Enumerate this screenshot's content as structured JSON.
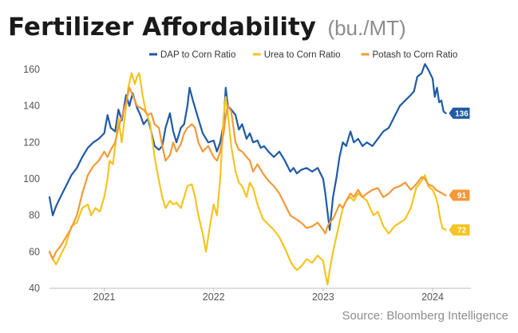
{
  "chart_data": {
    "type": "line",
    "title": "Fertilizer Affordability",
    "title_unit": "(bu./MT)",
    "source": "Source: Bloomberg Intelligence",
    "ylim": [
      40,
      160
    ],
    "yticks": [
      40,
      60,
      80,
      100,
      120,
      140,
      160
    ],
    "xlim": [
      2020.5,
      2024.35
    ],
    "xticks": [
      {
        "x": 2021,
        "label": "2021"
      },
      {
        "x": 2022,
        "label": "2022"
      },
      {
        "x": 2023,
        "label": "2023"
      },
      {
        "x": 2024,
        "label": "2024"
      }
    ],
    "legend_position": "top",
    "series": [
      {
        "name": "DAP to Corn Ratio",
        "color": "#1f5aa6",
        "end_label": "136",
        "end_value": 136,
        "points": [
          [
            2020.5,
            90
          ],
          [
            2020.53,
            80
          ],
          [
            2020.56,
            85
          ],
          [
            2020.6,
            90
          ],
          [
            2020.65,
            96
          ],
          [
            2020.7,
            102
          ],
          [
            2020.75,
            106
          ],
          [
            2020.8,
            112
          ],
          [
            2020.85,
            117
          ],
          [
            2020.9,
            120
          ],
          [
            2020.95,
            122
          ],
          [
            2021.0,
            125
          ],
          [
            2021.03,
            135
          ],
          [
            2021.06,
            128
          ],
          [
            2021.1,
            126
          ],
          [
            2021.13,
            138
          ],
          [
            2021.16,
            132
          ],
          [
            2021.2,
            146
          ],
          [
            2021.23,
            140
          ],
          [
            2021.26,
            147
          ],
          [
            2021.3,
            139
          ],
          [
            2021.33,
            135
          ],
          [
            2021.36,
            130
          ],
          [
            2021.4,
            133
          ],
          [
            2021.43,
            126
          ],
          [
            2021.46,
            118
          ],
          [
            2021.5,
            116
          ],
          [
            2021.53,
            118
          ],
          [
            2021.56,
            128
          ],
          [
            2021.6,
            136
          ],
          [
            2021.63,
            126
          ],
          [
            2021.66,
            120
          ],
          [
            2021.7,
            128
          ],
          [
            2021.73,
            130
          ],
          [
            2021.76,
            140
          ],
          [
            2021.78,
            150
          ],
          [
            2021.81,
            143
          ],
          [
            2021.85,
            135
          ],
          [
            2021.9,
            125
          ],
          [
            2021.95,
            120
          ],
          [
            2022.0,
            121
          ],
          [
            2022.03,
            115
          ],
          [
            2022.06,
            120
          ],
          [
            2022.09,
            130
          ],
          [
            2022.11,
            150
          ],
          [
            2022.13,
            140
          ],
          [
            2022.16,
            138
          ],
          [
            2022.2,
            135
          ],
          [
            2022.23,
            127
          ],
          [
            2022.26,
            130
          ],
          [
            2022.3,
            122
          ],
          [
            2022.33,
            125
          ],
          [
            2022.36,
            120
          ],
          [
            2022.4,
            121
          ],
          [
            2022.43,
            117
          ],
          [
            2022.46,
            118
          ],
          [
            2022.5,
            115
          ],
          [
            2022.55,
            112
          ],
          [
            2022.6,
            115
          ],
          [
            2022.65,
            110
          ],
          [
            2022.7,
            104
          ],
          [
            2022.73,
            106
          ],
          [
            2022.76,
            103
          ],
          [
            2022.8,
            105
          ],
          [
            2022.85,
            106
          ],
          [
            2022.9,
            104
          ],
          [
            2022.95,
            106
          ],
          [
            2023.0,
            100
          ],
          [
            2023.02,
            92
          ],
          [
            2023.04,
            82
          ],
          [
            2023.06,
            72
          ],
          [
            2023.09,
            90
          ],
          [
            2023.12,
            100
          ],
          [
            2023.15,
            112
          ],
          [
            2023.18,
            120
          ],
          [
            2023.21,
            118
          ],
          [
            2023.25,
            126
          ],
          [
            2023.28,
            120
          ],
          [
            2023.32,
            122
          ],
          [
            2023.36,
            118
          ],
          [
            2023.4,
            120
          ],
          [
            2023.45,
            118
          ],
          [
            2023.5,
            122
          ],
          [
            2023.55,
            126
          ],
          [
            2023.6,
            128
          ],
          [
            2023.65,
            134
          ],
          [
            2023.7,
            140
          ],
          [
            2023.75,
            143
          ],
          [
            2023.8,
            146
          ],
          [
            2023.83,
            148
          ],
          [
            2023.86,
            156
          ],
          [
            2023.9,
            158
          ],
          [
            2023.93,
            163
          ],
          [
            2023.96,
            160
          ],
          [
            2024.0,
            155
          ],
          [
            2024.02,
            145
          ],
          [
            2024.04,
            150
          ],
          [
            2024.06,
            142
          ],
          [
            2024.08,
            143
          ],
          [
            2024.1,
            137
          ],
          [
            2024.12,
            136
          ]
        ]
      },
      {
        "name": "Urea to Corn Ratio",
        "color": "#f5c421",
        "end_label": "72",
        "end_value": 72,
        "points": [
          [
            2020.5,
            60
          ],
          [
            2020.53,
            56
          ],
          [
            2020.56,
            53
          ],
          [
            2020.6,
            58
          ],
          [
            2020.65,
            64
          ],
          [
            2020.7,
            74
          ],
          [
            2020.75,
            76
          ],
          [
            2020.8,
            84
          ],
          [
            2020.85,
            86
          ],
          [
            2020.88,
            80
          ],
          [
            2020.92,
            84
          ],
          [
            2020.96,
            82
          ],
          [
            2021.0,
            90
          ],
          [
            2021.03,
            100
          ],
          [
            2021.05,
            110
          ],
          [
            2021.08,
            108
          ],
          [
            2021.1,
            118
          ],
          [
            2021.13,
            133
          ],
          [
            2021.16,
            120
          ],
          [
            2021.2,
            140
          ],
          [
            2021.22,
            150
          ],
          [
            2021.25,
            158
          ],
          [
            2021.28,
            152
          ],
          [
            2021.3,
            156
          ],
          [
            2021.32,
            158
          ],
          [
            2021.35,
            146
          ],
          [
            2021.38,
            137
          ],
          [
            2021.42,
            130
          ],
          [
            2021.46,
            112
          ],
          [
            2021.5,
            99
          ],
          [
            2021.53,
            90
          ],
          [
            2021.56,
            84
          ],
          [
            2021.6,
            88
          ],
          [
            2021.63,
            86
          ],
          [
            2021.66,
            87
          ],
          [
            2021.7,
            84
          ],
          [
            2021.73,
            90
          ],
          [
            2021.76,
            96
          ],
          [
            2021.8,
            97
          ],
          [
            2021.83,
            90
          ],
          [
            2021.86,
            80
          ],
          [
            2021.9,
            70
          ],
          [
            2021.93,
            60
          ],
          [
            2021.96,
            72
          ],
          [
            2022.0,
            86
          ],
          [
            2022.03,
            80
          ],
          [
            2022.06,
            100
          ],
          [
            2022.09,
            134
          ],
          [
            2022.11,
            145
          ],
          [
            2022.13,
            136
          ],
          [
            2022.16,
            118
          ],
          [
            2022.2,
            104
          ],
          [
            2022.23,
            98
          ],
          [
            2022.26,
            96
          ],
          [
            2022.3,
            90
          ],
          [
            2022.33,
            98
          ],
          [
            2022.36,
            95
          ],
          [
            2022.4,
            86
          ],
          [
            2022.45,
            78
          ],
          [
            2022.5,
            75
          ],
          [
            2022.55,
            72
          ],
          [
            2022.6,
            68
          ],
          [
            2022.65,
            62
          ],
          [
            2022.7,
            55
          ],
          [
            2022.73,
            52
          ],
          [
            2022.76,
            50
          ],
          [
            2022.8,
            52
          ],
          [
            2022.85,
            56
          ],
          [
            2022.9,
            54
          ],
          [
            2022.95,
            58
          ],
          [
            2023.0,
            55
          ],
          [
            2023.02,
            48
          ],
          [
            2023.04,
            42
          ],
          [
            2023.06,
            50
          ],
          [
            2023.09,
            60
          ],
          [
            2023.12,
            68
          ],
          [
            2023.15,
            76
          ],
          [
            2023.18,
            84
          ],
          [
            2023.21,
            88
          ],
          [
            2023.25,
            90
          ],
          [
            2023.28,
            88
          ],
          [
            2023.32,
            92
          ],
          [
            2023.36,
            90
          ],
          [
            2023.4,
            88
          ],
          [
            2023.43,
            84
          ],
          [
            2023.46,
            80
          ],
          [
            2023.5,
            82
          ],
          [
            2023.55,
            74
          ],
          [
            2023.6,
            70
          ],
          [
            2023.65,
            74
          ],
          [
            2023.7,
            76
          ],
          [
            2023.75,
            78
          ],
          [
            2023.8,
            84
          ],
          [
            2023.85,
            95
          ],
          [
            2023.9,
            99
          ],
          [
            2023.93,
            102
          ],
          [
            2023.96,
            96
          ],
          [
            2024.0,
            94
          ],
          [
            2024.03,
            90
          ],
          [
            2024.05,
            85
          ],
          [
            2024.07,
            78
          ],
          [
            2024.09,
            73
          ],
          [
            2024.12,
            72
          ]
        ]
      },
      {
        "name": "Potash to Corn Ratio",
        "color": "#f39a37",
        "end_label": "91",
        "end_value": 91,
        "points": [
          [
            2020.5,
            60
          ],
          [
            2020.53,
            56
          ],
          [
            2020.56,
            60
          ],
          [
            2020.6,
            63
          ],
          [
            2020.65,
            68
          ],
          [
            2020.7,
            73
          ],
          [
            2020.75,
            80
          ],
          [
            2020.8,
            92
          ],
          [
            2020.85,
            102
          ],
          [
            2020.9,
            107
          ],
          [
            2020.95,
            110
          ],
          [
            2021.0,
            115
          ],
          [
            2021.03,
            112
          ],
          [
            2021.06,
            116
          ],
          [
            2021.1,
            120
          ],
          [
            2021.13,
            128
          ],
          [
            2021.16,
            134
          ],
          [
            2021.2,
            142
          ],
          [
            2021.23,
            150
          ],
          [
            2021.26,
            146
          ],
          [
            2021.3,
            140
          ],
          [
            2021.33,
            139
          ],
          [
            2021.36,
            138
          ],
          [
            2021.4,
            135
          ],
          [
            2021.43,
            136
          ],
          [
            2021.46,
            130
          ],
          [
            2021.5,
            128
          ],
          [
            2021.53,
            118
          ],
          [
            2021.56,
            110
          ],
          [
            2021.6,
            113
          ],
          [
            2021.63,
            120
          ],
          [
            2021.66,
            115
          ],
          [
            2021.7,
            119
          ],
          [
            2021.73,
            125
          ],
          [
            2021.76,
            128
          ],
          [
            2021.8,
            130
          ],
          [
            2021.83,
            128
          ],
          [
            2021.86,
            120
          ],
          [
            2021.9,
            115
          ],
          [
            2021.95,
            118
          ],
          [
            2022.0,
            112
          ],
          [
            2022.03,
            110
          ],
          [
            2022.06,
            115
          ],
          [
            2022.09,
            125
          ],
          [
            2022.11,
            134
          ],
          [
            2022.13,
            140
          ],
          [
            2022.16,
            137
          ],
          [
            2022.2,
            120
          ],
          [
            2022.23,
            116
          ],
          [
            2022.26,
            115
          ],
          [
            2022.3,
            112
          ],
          [
            2022.33,
            110
          ],
          [
            2022.36,
            104
          ],
          [
            2022.4,
            108
          ],
          [
            2022.45,
            103
          ],
          [
            2022.5,
            99
          ],
          [
            2022.55,
            96
          ],
          [
            2022.6,
            92
          ],
          [
            2022.65,
            86
          ],
          [
            2022.7,
            80
          ],
          [
            2022.75,
            78
          ],
          [
            2022.8,
            76
          ],
          [
            2022.85,
            73
          ],
          [
            2022.9,
            74
          ],
          [
            2022.95,
            76
          ],
          [
            2023.0,
            72
          ],
          [
            2023.02,
            70
          ],
          [
            2023.04,
            74
          ],
          [
            2023.06,
            76
          ],
          [
            2023.09,
            78
          ],
          [
            2023.12,
            82
          ],
          [
            2023.15,
            86
          ],
          [
            2023.18,
            84
          ],
          [
            2023.21,
            88
          ],
          [
            2023.25,
            92
          ],
          [
            2023.28,
            90
          ],
          [
            2023.32,
            94
          ],
          [
            2023.36,
            90
          ],
          [
            2023.4,
            92
          ],
          [
            2023.45,
            94
          ],
          [
            2023.5,
            95
          ],
          [
            2023.55,
            90
          ],
          [
            2023.6,
            92
          ],
          [
            2023.65,
            95
          ],
          [
            2023.7,
            96
          ],
          [
            2023.75,
            98
          ],
          [
            2023.8,
            94
          ],
          [
            2023.85,
            97
          ],
          [
            2023.9,
            101
          ],
          [
            2023.93,
            100
          ],
          [
            2023.96,
            97
          ],
          [
            2024.0,
            96
          ],
          [
            2024.03,
            94
          ],
          [
            2024.06,
            93
          ],
          [
            2024.09,
            92
          ],
          [
            2024.12,
            91
          ]
        ]
      }
    ]
  }
}
